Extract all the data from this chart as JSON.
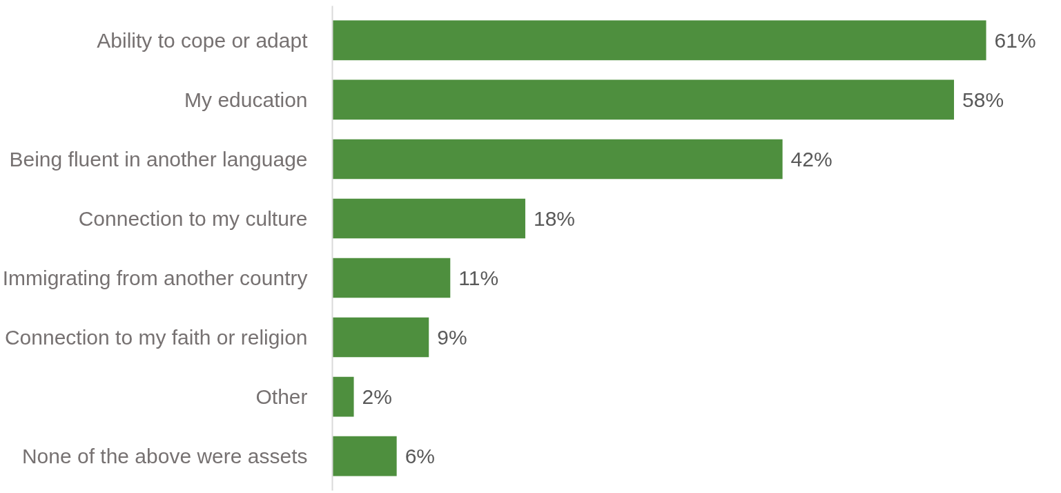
{
  "chart_data": {
    "type": "bar",
    "orientation": "horizontal",
    "categories": [
      "Ability to cope or adapt",
      "My education",
      "Being fluent in another language",
      "Connection to my culture",
      "Immigrating from another country",
      "Connection to my faith or religion",
      "Other",
      "None of the above were assets"
    ],
    "values": [
      61,
      58,
      42,
      18,
      11,
      9,
      2,
      6
    ],
    "value_labels": [
      "61%",
      "58%",
      "42%",
      "18%",
      "11%",
      "9%",
      "2%",
      "6%"
    ],
    "color": "#4e8f3e",
    "grid": false
  }
}
